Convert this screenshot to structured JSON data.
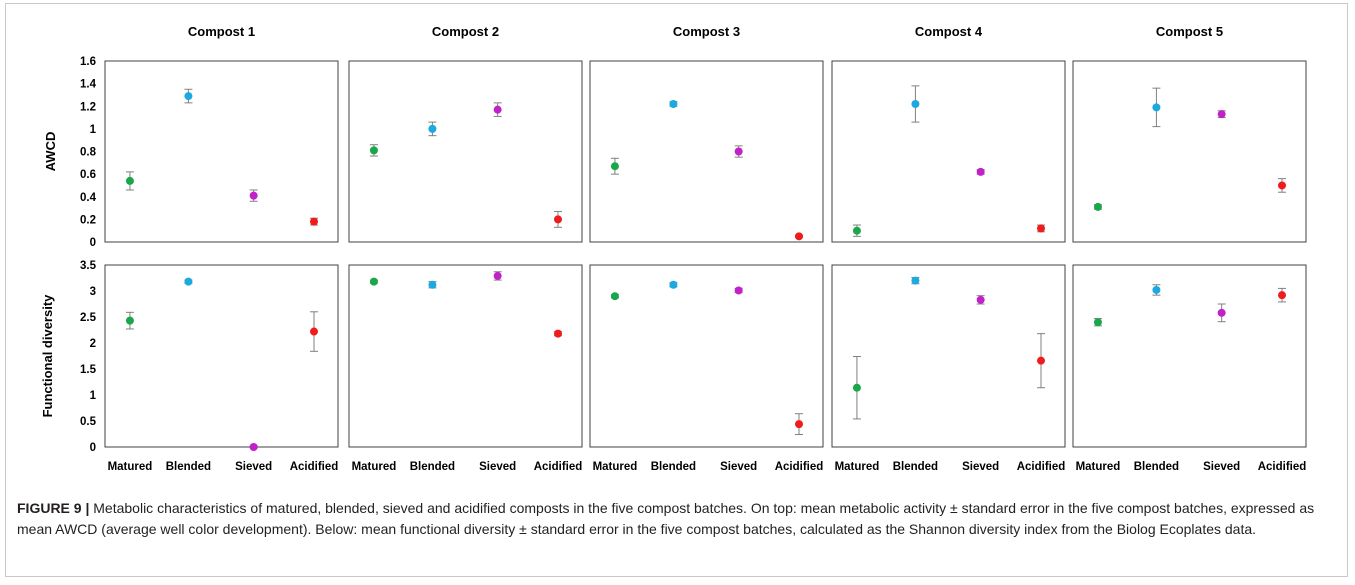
{
  "figure": {
    "caption_label": "FIGURE 9 |",
    "caption_text": " Metabolic characteristics of matured, blended, sieved and acidified composts in the five compost batches. On top: mean metabolic activity ± standard error in the five compost batches, expressed as mean AWCD (average well color development). Below: mean functional diversity ± standard error in the five compost batches, calculated as the Shannon diversity index from the Biolog Ecoplates data."
  },
  "colors": {
    "Matured": "#1aa64a",
    "Blended": "#1ba9e1",
    "Sieved": "#c021c9",
    "Acidified": "#ee1c1c",
    "errorbar": "#808080",
    "frame": "#404040"
  },
  "chart_data": {
    "type": "scatter",
    "categories": [
      "Matured",
      "Blended",
      "Sieved",
      "Acidified"
    ],
    "panels": [
      "Compost 1",
      "Compost 2",
      "Compost 3",
      "Compost 4",
      "Compost 5"
    ],
    "rows": [
      {
        "ylabel": "AWCD",
        "ylim": [
          0,
          1.6
        ],
        "yticks": [
          "0",
          "0.2",
          "0.4",
          "0.6",
          "0.8",
          "1",
          "1.2",
          "1.4",
          "1.6"
        ],
        "values": [
          [
            0.54,
            1.29,
            0.41,
            0.18
          ],
          [
            0.81,
            1.0,
            1.17,
            0.2
          ],
          [
            0.67,
            1.22,
            0.8,
            0.05
          ],
          [
            0.1,
            1.22,
            0.62,
            0.12
          ],
          [
            0.31,
            1.19,
            1.13,
            0.5
          ]
        ],
        "errors": [
          [
            0.08,
            0.06,
            0.05,
            0.03
          ],
          [
            0.05,
            0.06,
            0.06,
            0.07
          ],
          [
            0.07,
            0.02,
            0.05,
            0.01
          ],
          [
            0.05,
            0.16,
            0.02,
            0.03
          ],
          [
            0.02,
            0.17,
            0.03,
            0.06
          ]
        ]
      },
      {
        "ylabel": "Functional diversity",
        "ylim": [
          0,
          3.5
        ],
        "yticks": [
          "0",
          "0.5",
          "1",
          "1.5",
          "2",
          "2.5",
          "3",
          "3.5"
        ],
        "values": [
          [
            2.43,
            3.18,
            0.0,
            2.22
          ],
          [
            3.18,
            3.12,
            3.29,
            2.18
          ],
          [
            2.9,
            3.12,
            3.01,
            0.44
          ],
          [
            1.14,
            3.2,
            2.83,
            1.66
          ],
          [
            2.4,
            3.02,
            2.58,
            2.92
          ]
        ],
        "errors": [
          [
            0.16,
            0.03,
            0.02,
            0.38
          ],
          [
            0.03,
            0.06,
            0.08,
            0.04
          ],
          [
            0.03,
            0.04,
            0.04,
            0.2
          ],
          [
            0.6,
            0.06,
            0.08,
            0.52
          ],
          [
            0.07,
            0.1,
            0.17,
            0.13
          ]
        ]
      }
    ]
  }
}
